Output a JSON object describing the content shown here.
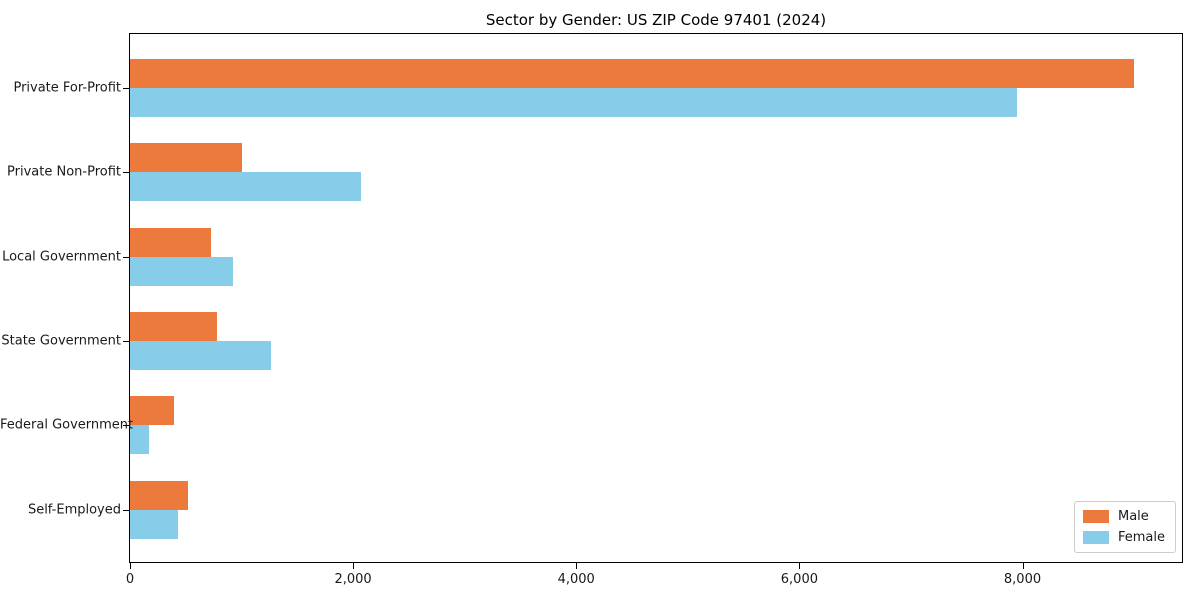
{
  "title": "Sector by Gender: US ZIP Code 97401 (2024)",
  "chart_data": {
    "type": "bar",
    "orientation": "horizontal",
    "title": "Sector by Gender: US ZIP Code 97401 (2024)",
    "categories": [
      "Private For-Profit",
      "Private Non-Profit",
      "Local Government",
      "State Government",
      "Federal Government",
      "Self-Employed"
    ],
    "series": [
      {
        "name": "Male",
        "color": "#ec7a3d",
        "values": [
          9000,
          1000,
          730,
          780,
          390,
          520
        ]
      },
      {
        "name": "Female",
        "color": "#87cde9",
        "values": [
          7950,
          2070,
          920,
          1260,
          170,
          430
        ]
      }
    ],
    "xlabel": "",
    "ylabel": "",
    "xlim": [
      0,
      9430
    ],
    "x_ticks": [
      0,
      2000,
      4000,
      6000,
      8000
    ],
    "x_tick_labels": [
      "0",
      "2,000",
      "4,000",
      "6,000",
      "8,000"
    ],
    "legend_position": "lower right",
    "grid": false,
    "axis_color": "#000000"
  }
}
